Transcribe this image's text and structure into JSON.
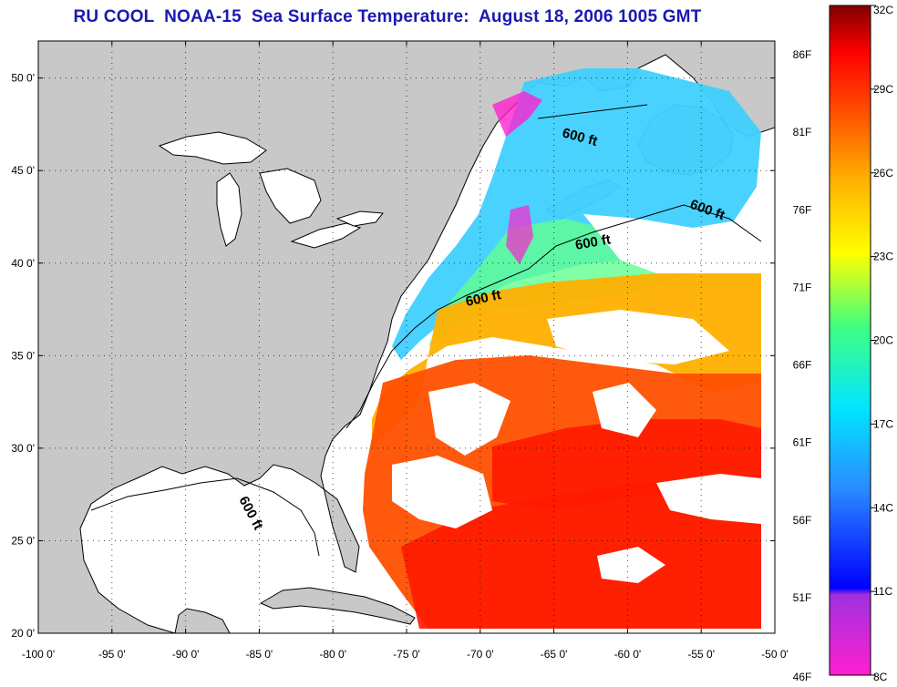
{
  "title": "RU COOL  NOAA-15  Sea Surface Temperature:  August 18, 2006 1005 GMT",
  "map": {
    "lon_range": [
      -100,
      -50
    ],
    "lat_range": [
      20,
      52
    ],
    "lon_ticks": [
      "-100 0'",
      "-95 0'",
      "-90 0'",
      "-85 0'",
      "-80 0'",
      "-75 0'",
      "-70 0'",
      "-65 0'",
      "-60 0'",
      "-55 0'",
      "-50 0'"
    ],
    "lat_ticks": [
      "20 0'",
      "25 0'",
      "30 0'",
      "35 0'",
      "40 0'",
      "45 0'",
      "50 0'"
    ],
    "land_color": "#c8c8c8",
    "water_color": "#ffffff",
    "grid": "dotted",
    "contour_labels": [
      "600 ft",
      "600 ft",
      "600 ft",
      "600 ft",
      "600 ft"
    ]
  },
  "colorbar": {
    "range_c": [
      8,
      32
    ],
    "celsius_labels": [
      "32C",
      "29C",
      "26C",
      "23C",
      "20C",
      "17C",
      "14C",
      "11C",
      "8C"
    ],
    "fahrenheit_labels": [
      "86F",
      "81F",
      "76F",
      "71F",
      "66F",
      "61F",
      "56F",
      "51F",
      "46F"
    ],
    "colors": [
      "#ff20d0",
      "#8040e0",
      "#0000ff",
      "#2a8cff",
      "#00e6ff",
      "#40ff80",
      "#ffff00",
      "#ffb000",
      "#ff5000",
      "#ff0000",
      "#800000"
    ]
  }
}
